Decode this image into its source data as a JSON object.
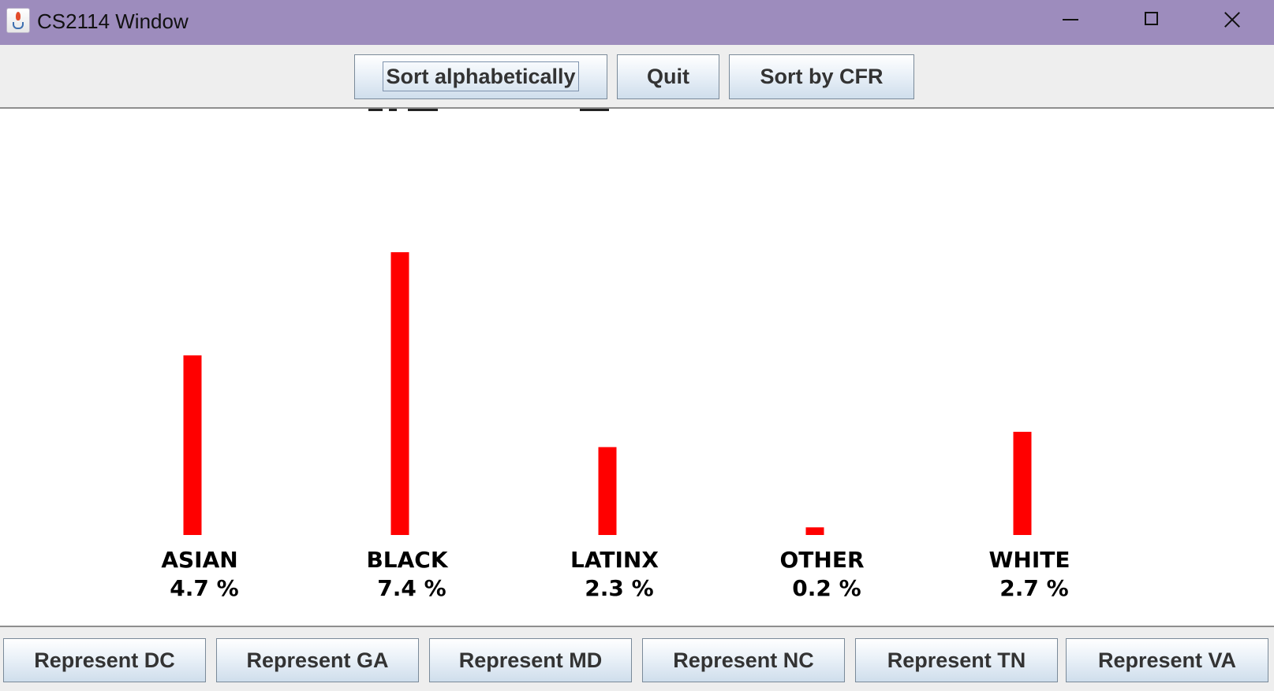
{
  "window": {
    "title": "CS2114 Window"
  },
  "top_toolbar": {
    "sort_alpha_label": "Sort alphabetically",
    "quit_label": "Quit",
    "sort_cfr_label": "Sort by CFR"
  },
  "chart_data": {
    "type": "bar",
    "categories": [
      "ASIAN",
      "BLACK",
      "LATINX",
      "OTHER",
      "WHITE"
    ],
    "values": [
      4.7,
      7.4,
      2.3,
      0.2,
      2.7
    ],
    "value_labels": [
      "4.7 %",
      "7.4 %",
      "2.3 %",
      "0.2 %",
      "2.7 %"
    ],
    "bar_color": "#ff0000",
    "title": "",
    "xlabel": "",
    "ylabel": "",
    "grid": false,
    "legend": "none"
  },
  "bottom_toolbar": {
    "buttons": [
      "Represent DC",
      "Represent GA",
      "Represent MD",
      "Represent NC",
      "Represent TN",
      "Represent VA"
    ]
  },
  "colors": {
    "titlebar": "#9d8cbd",
    "bar": "#ff0000",
    "panel": "#ffffff",
    "toolbar": "#eeeeee"
  }
}
